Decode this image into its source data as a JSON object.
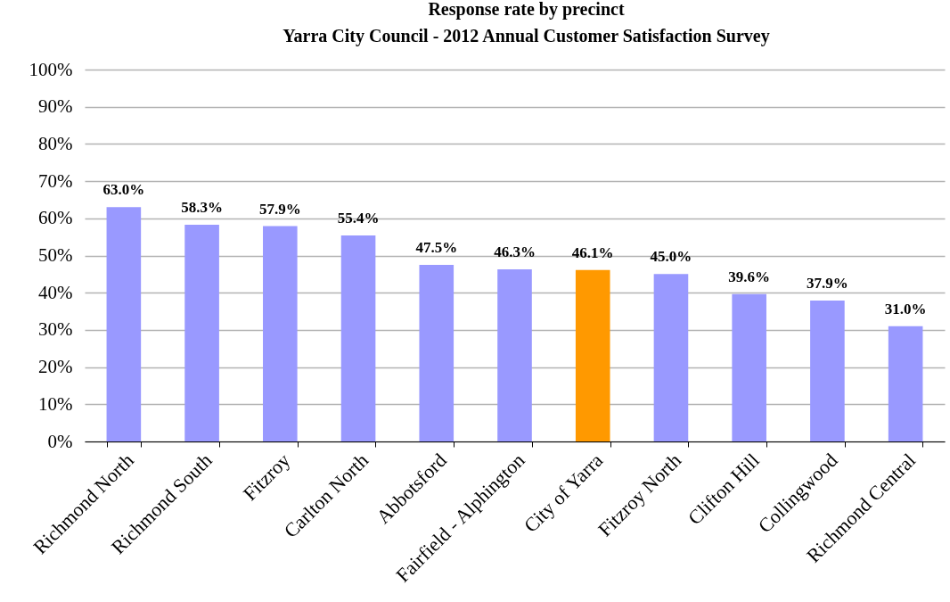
{
  "chart_data": {
    "type": "bar",
    "title": "Response rate by precinct",
    "subtitle": "Yarra City Council - 2012 Annual Customer Satisfaction Survey",
    "categories": [
      "Richmond North",
      "Richmond South",
      "Fitzroy",
      "Carlton North",
      "Abbotsford",
      "Fairfield - Alphington",
      "City of Yarra",
      "Fitzroy North",
      "Clifton Hill",
      "Collingwood",
      "Richmond Central"
    ],
    "values": [
      63.0,
      58.3,
      57.9,
      55.4,
      47.5,
      46.3,
      46.1,
      45.0,
      39.6,
      37.9,
      31.0
    ],
    "colors": [
      "#9999ff",
      "#9999ff",
      "#9999ff",
      "#9999ff",
      "#9999ff",
      "#9999ff",
      "#ff9900",
      "#9999ff",
      "#9999ff",
      "#9999ff",
      "#9999ff"
    ],
    "value_labels": [
      "63.0%",
      "58.3%",
      "57.9%",
      "55.4%",
      "47.5%",
      "46.3%",
      "46.1%",
      "45.0%",
      "39.6%",
      "37.9%",
      "31.0%"
    ],
    "ylim": [
      0,
      100
    ],
    "yticks": [
      {
        "value": 0,
        "label": "0%"
      },
      {
        "value": 10,
        "label": "10%"
      },
      {
        "value": 20,
        "label": "20%"
      },
      {
        "value": 30,
        "label": "30%"
      },
      {
        "value": 40,
        "label": "40%"
      },
      {
        "value": 50,
        "label": "50%"
      },
      {
        "value": 60,
        "label": "60%"
      },
      {
        "value": 70,
        "label": "70%"
      },
      {
        "value": 80,
        "label": "80%"
      },
      {
        "value": 90,
        "label": "90%"
      },
      {
        "value": 100,
        "label": "100%"
      }
    ],
    "grid": "y"
  }
}
